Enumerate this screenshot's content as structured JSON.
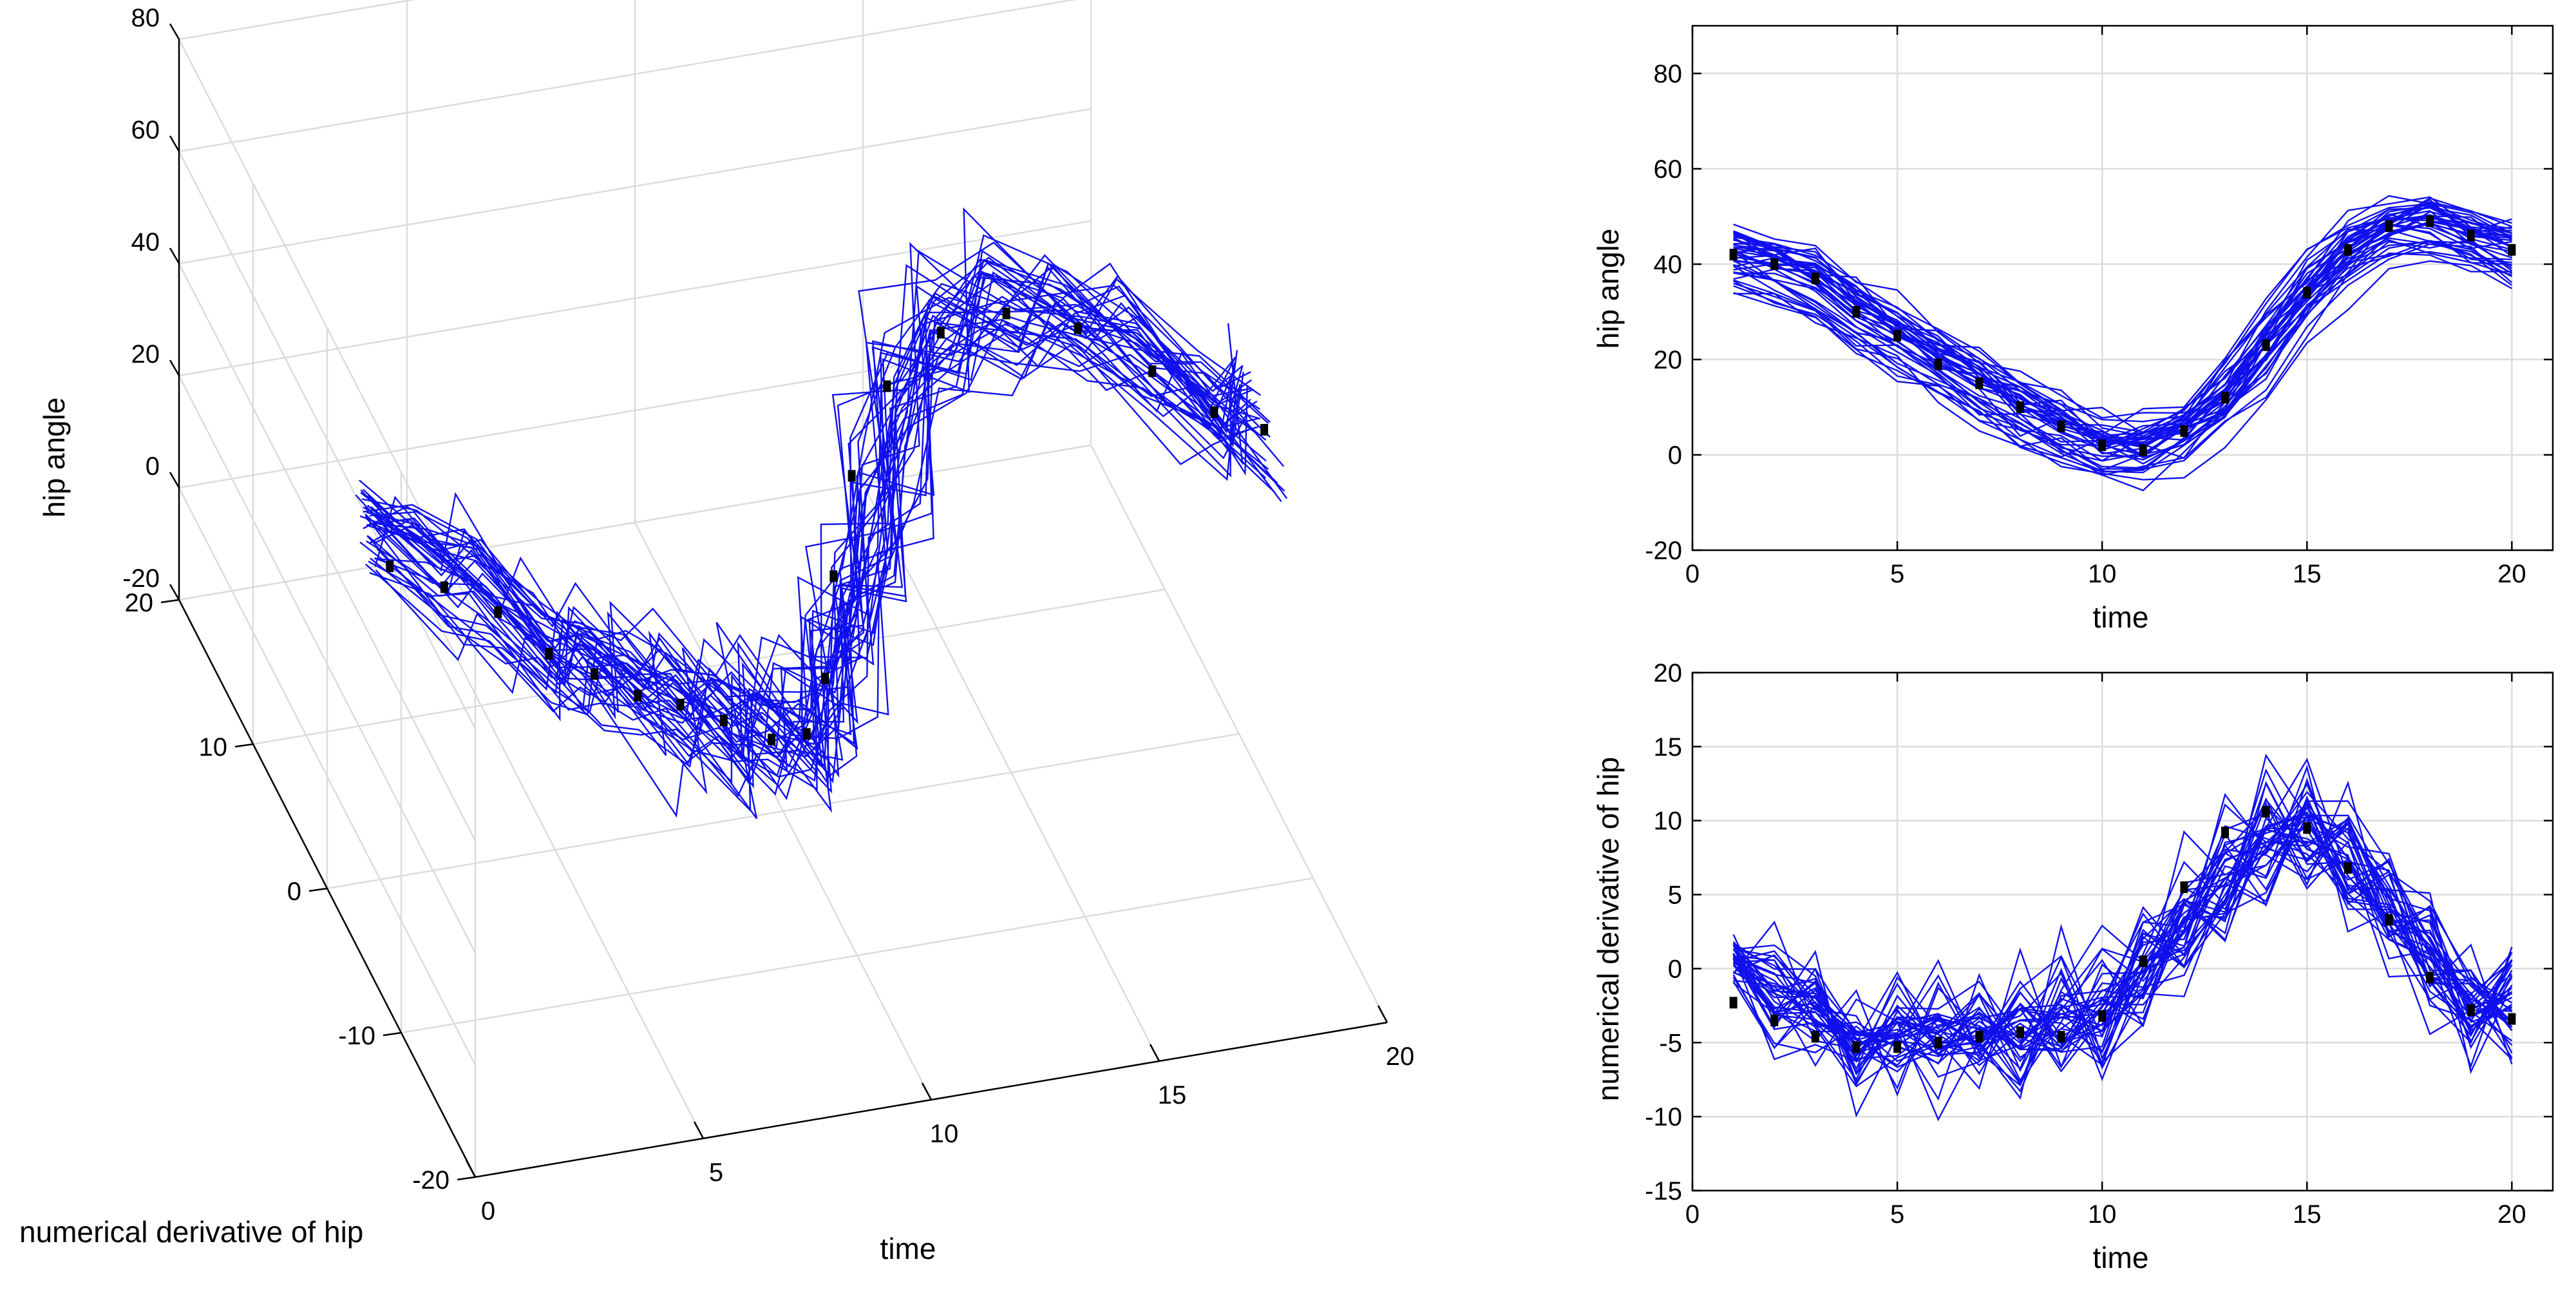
{
  "colors": {
    "curve": "#1010ee",
    "mean": "#000000",
    "grid": "#dcdcdc"
  },
  "chart_data": [
    {
      "id": "plot3d",
      "type": "line",
      "projection": "3d",
      "title": "",
      "xlabel": "time",
      "ylabel": "numerical derivative of hip",
      "zlabel": "hip angle",
      "xlim": [
        0,
        20
      ],
      "ylim": [
        -20,
        20
      ],
      "zlim": [
        -20,
        80
      ],
      "x_ticks": [
        "0",
        "5",
        "10",
        "15",
        "20"
      ],
      "y_ticks": [
        "-20",
        "-10",
        "0",
        "10",
        "20"
      ],
      "z_ticks": [
        "-20",
        "0",
        "20",
        "40",
        "60",
        "80"
      ],
      "x": [
        1,
        2,
        3,
        4,
        5,
        6,
        7,
        8,
        9,
        10,
        11,
        12,
        13,
        14,
        15,
        16,
        17,
        18,
        19,
        20
      ],
      "series": [
        {
          "name": "mean",
          "z": [
            42,
            40,
            37,
            30,
            25,
            19,
            15,
            10,
            6,
            2,
            1,
            5,
            12,
            23,
            34,
            43,
            48,
            49,
            46,
            43
          ],
          "y": [
            -2.3,
            -3.5,
            -4.6,
            -5.3,
            -5.3,
            -5.0,
            -4.6,
            -4.3,
            -4.6,
            -3.2,
            0.5,
            5.5,
            9.2,
            10.6,
            9.5,
            6.8,
            3.3,
            -0.6,
            -2.8,
            -3.4
          ]
        }
      ],
      "note": "About 40 individual blue curves scatter around the mean curve."
    },
    {
      "id": "plotTop",
      "type": "line",
      "title": "",
      "xlabel": "time",
      "ylabel": "hip angle",
      "xlim": [
        0,
        21
      ],
      "ylim": [
        -20,
        90
      ],
      "x_ticks": [
        "0",
        "5",
        "10",
        "15",
        "20"
      ],
      "y_ticks": [
        "-20",
        "0",
        "20",
        "40",
        "60",
        "80"
      ],
      "x": [
        1,
        2,
        3,
        4,
        5,
        6,
        7,
        8,
        9,
        10,
        11,
        12,
        13,
        14,
        15,
        16,
        17,
        18,
        19,
        20
      ],
      "series": [
        {
          "name": "mean",
          "values": [
            42,
            40,
            37,
            30,
            25,
            19,
            15,
            10,
            6,
            2,
            1,
            5,
            12,
            23,
            34,
            43,
            48,
            49,
            46,
            43
          ]
        }
      ]
    },
    {
      "id": "plotBottom",
      "type": "line",
      "title": "",
      "xlabel": "time",
      "ylabel": "numerical derivative of hip",
      "xlim": [
        0,
        21
      ],
      "ylim": [
        -15,
        20
      ],
      "x_ticks": [
        "0",
        "5",
        "10",
        "15",
        "20"
      ],
      "y_ticks": [
        "-15",
        "-10",
        "-5",
        "0",
        "5",
        "10",
        "15",
        "20"
      ],
      "x": [
        1,
        2,
        3,
        4,
        5,
        6,
        7,
        8,
        9,
        10,
        11,
        12,
        13,
        14,
        15,
        16,
        17,
        18,
        19,
        20
      ],
      "series": [
        {
          "name": "mean",
          "values": [
            -2.3,
            -3.5,
            -4.6,
            -5.3,
            -5.3,
            -5.0,
            -4.6,
            -4.3,
            -4.6,
            -3.2,
            0.5,
            5.5,
            9.2,
            10.6,
            9.5,
            6.8,
            3.3,
            -0.6,
            -2.8,
            -3.4
          ]
        }
      ]
    }
  ]
}
